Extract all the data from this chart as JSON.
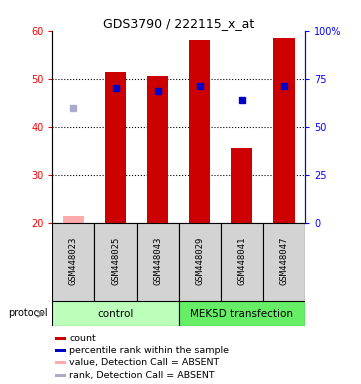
{
  "title": "GDS3790 / 222115_x_at",
  "samples": [
    "GSM448023",
    "GSM448025",
    "GSM448043",
    "GSM448029",
    "GSM448041",
    "GSM448047"
  ],
  "bar_heights_red": [
    null,
    51.5,
    50.5,
    58.0,
    35.5,
    58.5
  ],
  "bar_heights_pink": [
    21.5,
    null,
    null,
    null,
    null,
    null
  ],
  "blue_squares_y": [
    null,
    48.0,
    47.5,
    48.5,
    45.5,
    48.5
  ],
  "light_blue_squares_y": [
    44.0,
    null,
    null,
    null,
    null,
    null
  ],
  "bar_bottom": 20,
  "ylim_left": [
    20,
    60
  ],
  "ylim_right": [
    0,
    100
  ],
  "yticks_left": [
    20,
    30,
    40,
    50,
    60
  ],
  "yticks_right": [
    0,
    25,
    50,
    75,
    100
  ],
  "ytick_labels_right": [
    "0",
    "25",
    "50",
    "75",
    "100%"
  ],
  "red_color": "#cc0000",
  "pink_color": "#ffaaaa",
  "blue_color": "#0000cc",
  "light_blue_color": "#aaaacc",
  "bar_width": 0.5,
  "legend_items": [
    {
      "color": "#cc0000",
      "label": "count"
    },
    {
      "color": "#0000cc",
      "label": "percentile rank within the sample"
    },
    {
      "color": "#ffaaaa",
      "label": "value, Detection Call = ABSENT"
    },
    {
      "color": "#aaaacc",
      "label": "rank, Detection Call = ABSENT"
    }
  ],
  "protocol_label": "protocol",
  "sample_box_color": "#d3d3d3",
  "ctrl_color": "#bbffbb",
  "mek_color": "#66ee66"
}
